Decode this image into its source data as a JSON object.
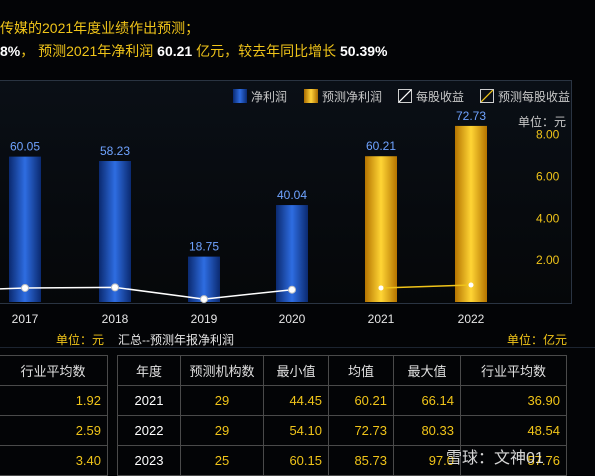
{
  "summary": {
    "line1": "传媒的2021年度业绩作出预测；",
    "line2_a": "8%",
    "line2_b": "， 预测2021年净利润",
    "line2_c": "60.21",
    "line2_d": "亿元，较去年同比增长",
    "line2_e": "50.39%"
  },
  "legend": {
    "net_profit": "净利润",
    "forecast_net_profit": "预测净利润",
    "eps": "每股收益",
    "forecast_eps": "预测每股收益"
  },
  "units": {
    "top_right": "单位：元",
    "bottom_left": "单位：元",
    "bottom_right": "单位：亿元",
    "subtitle": "汇总--预测年报净利润"
  },
  "colors": {
    "actual_bar": "#1f55c8",
    "forecast_bar": "#f5b800",
    "label_actual": "#6fa3ff",
    "label_forecast": "#6fa3ff",
    "eps_line": "#ffffff",
    "forecast_eps_line": "#f0c419"
  },
  "chart_data": {
    "type": "bar",
    "categories": [
      "2017",
      "2018",
      "2019",
      "2020",
      "2021",
      "2022"
    ],
    "series": [
      {
        "name": "净利润",
        "values": [
          60.05,
          58.23,
          18.75,
          40.04,
          null,
          null
        ]
      },
      {
        "name": "预测净利润",
        "values": [
          null,
          null,
          null,
          null,
          60.21,
          72.73
        ]
      },
      {
        "name": "每股收益",
        "values": [
          0.48,
          0.5,
          0.1,
          0.42,
          null,
          null
        ]
      },
      {
        "name": "预测每股收益",
        "values": [
          null,
          null,
          null,
          null,
          0.48,
          0.58
        ]
      }
    ],
    "right_axis": {
      "ticks": [
        "2.00",
        "4.00",
        "6.00",
        "8.00"
      ],
      "ylim": [
        0,
        8.8
      ]
    },
    "bar_ylim": [
      0,
      76
    ]
  },
  "left_table": {
    "header": "行业平均数",
    "rows": [
      "1.92",
      "2.59",
      "3.40"
    ]
  },
  "right_table": {
    "headers": [
      "年度",
      "预测机构数",
      "最小值",
      "均值",
      "最大值",
      "行业平均数"
    ],
    "rows": [
      [
        "2021",
        "29",
        "44.45",
        "60.21",
        "66.14",
        "36.90"
      ],
      [
        "2022",
        "29",
        "54.10",
        "72.73",
        "80.33",
        "48.54"
      ],
      [
        "2023",
        "25",
        "60.15",
        "85.73",
        "97.0",
        "57.76"
      ]
    ]
  },
  "watermark": "雪球：文神01"
}
